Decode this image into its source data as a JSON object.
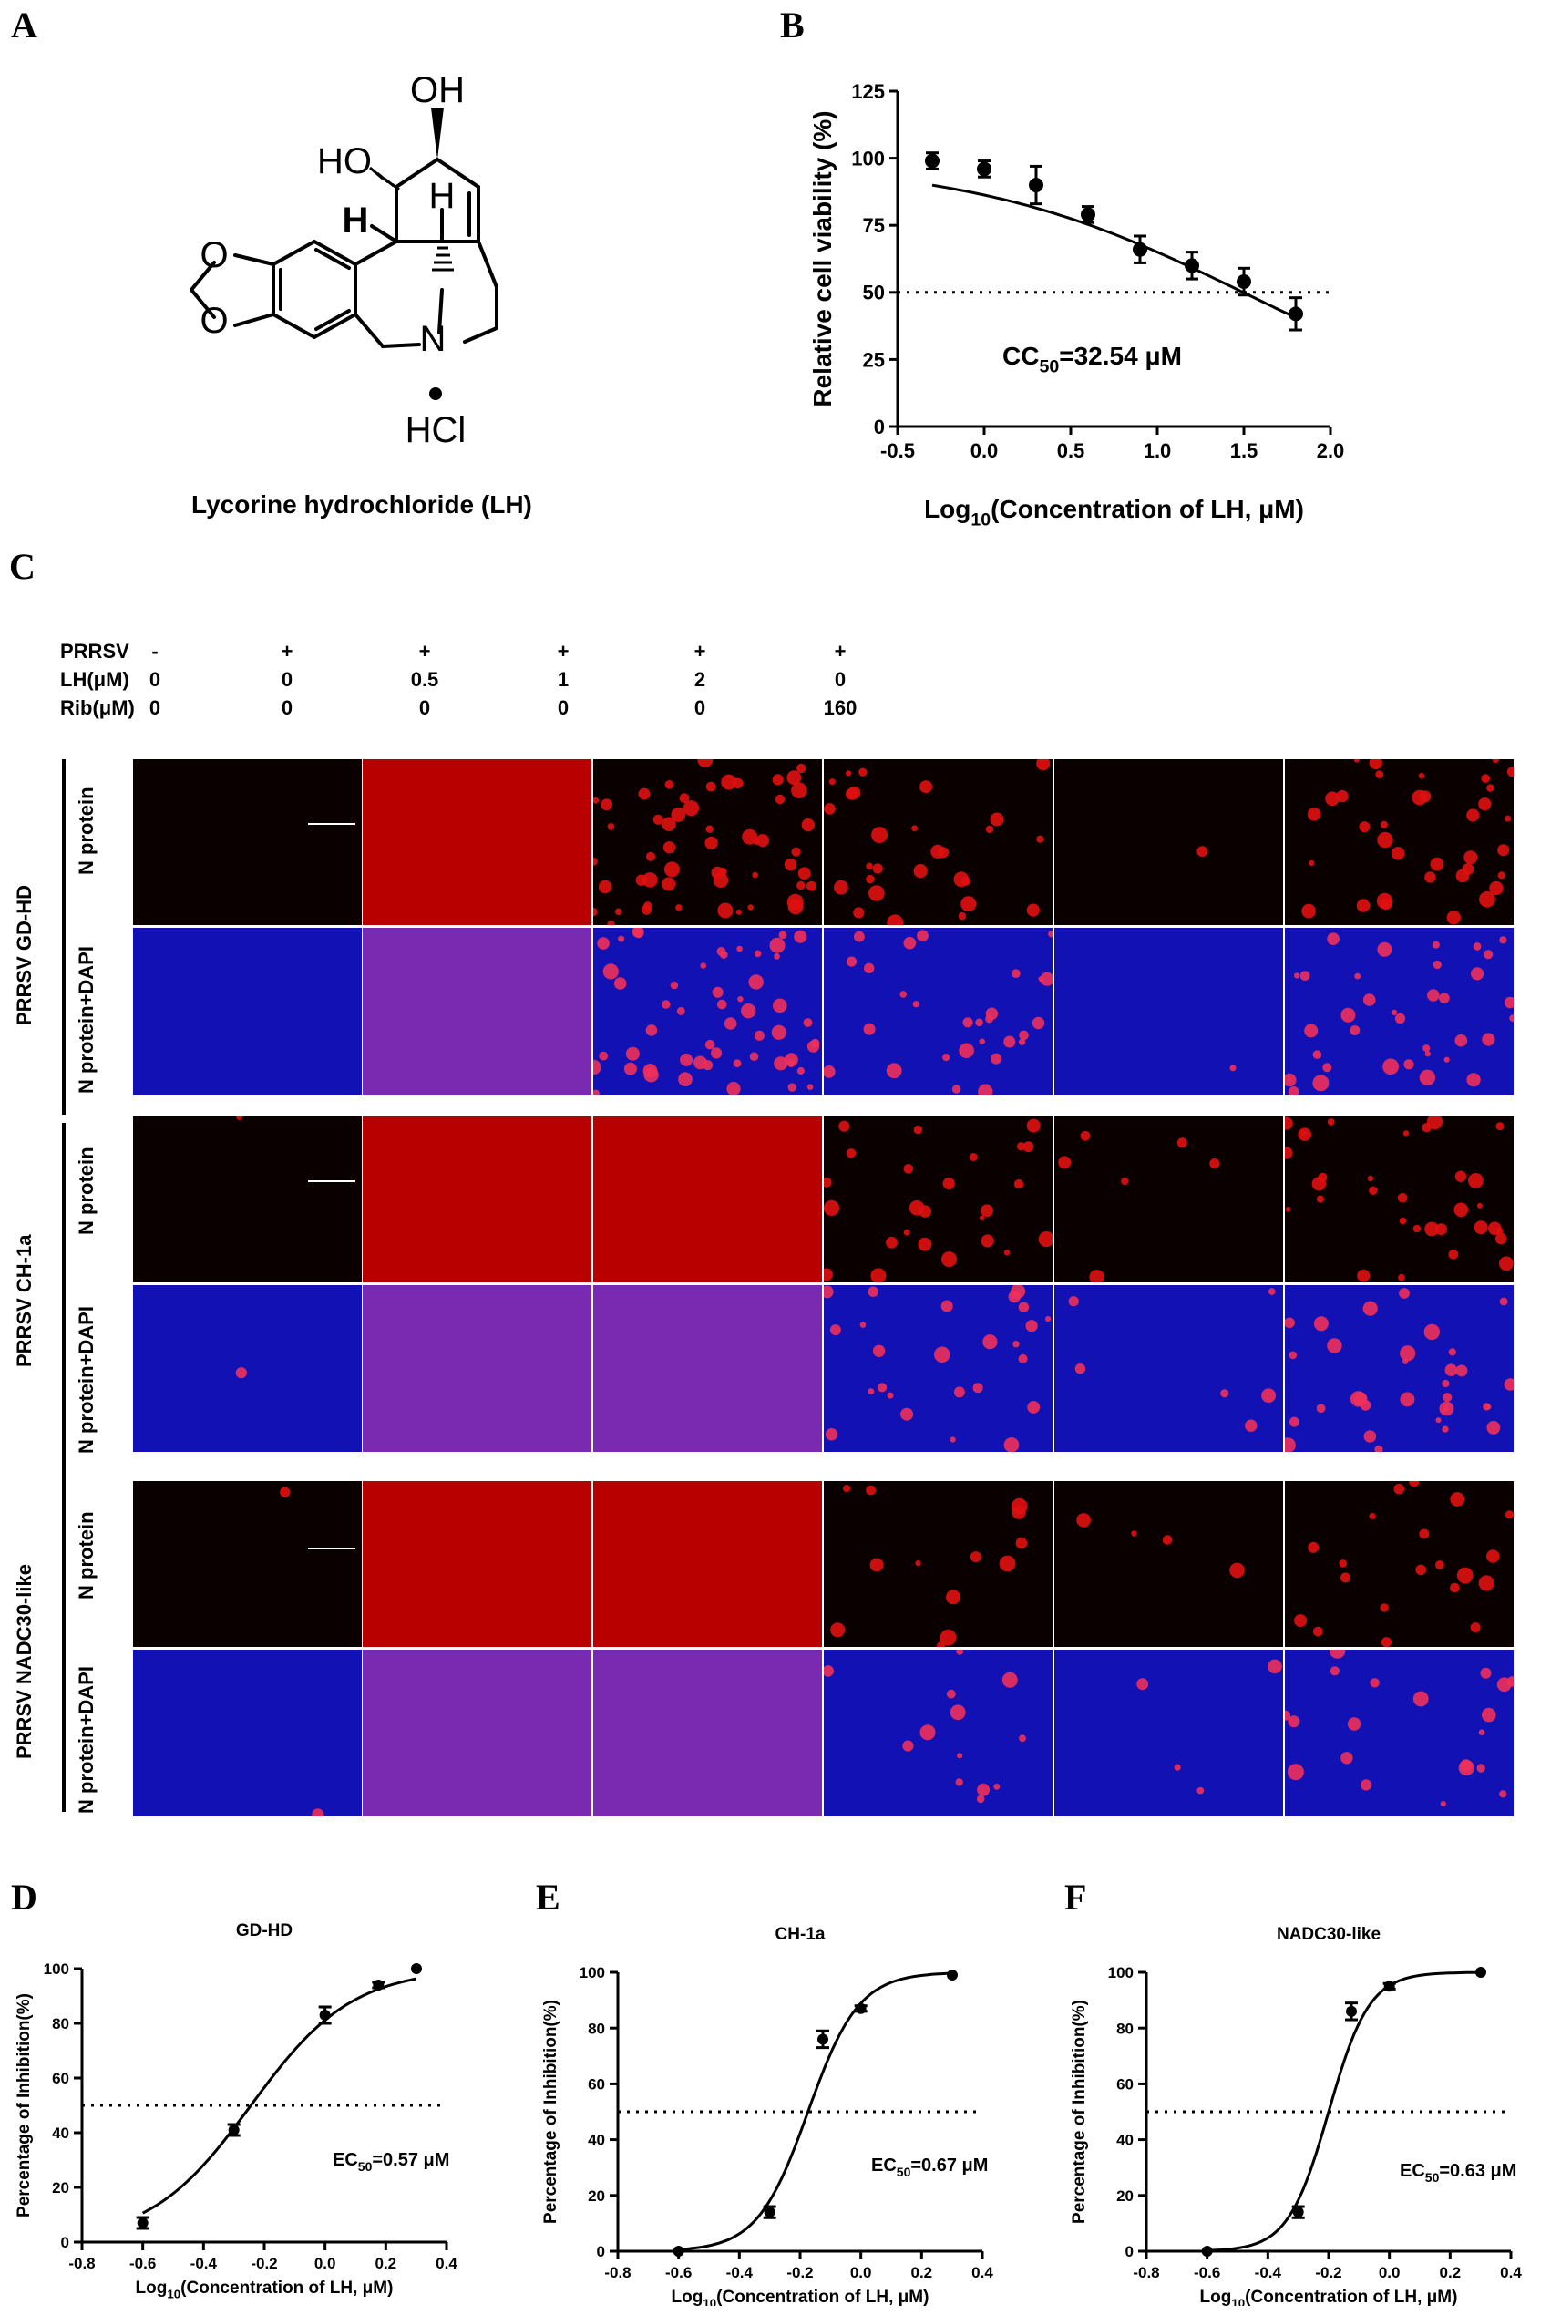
{
  "panels": {
    "A": "A",
    "B": "B",
    "C": "C",
    "D": "D",
    "E": "E",
    "F": "F"
  },
  "panel_a": {
    "caption": "Lycorine hydrochloride (LH)",
    "atoms": {
      "oh": "OH",
      "ho": "HO",
      "h1": "H",
      "h2": "H",
      "o1": "O",
      "o2": "O",
      "n": "N",
      "hcl": "HCl"
    }
  },
  "panel_c": {
    "conditions": [
      {
        "label": "PRRSV",
        "values": [
          "-",
          "+",
          "+",
          "+",
          "+",
          "+"
        ]
      },
      {
        "label": "LH(μM)",
        "values": [
          "0",
          "0",
          "0.5",
          "1",
          "2",
          "0"
        ]
      },
      {
        "label": "Rib(μM)",
        "values": [
          "0",
          "0",
          "0",
          "0",
          "0",
          "160"
        ]
      }
    ],
    "groups": [
      {
        "name": "PRRSV  GD-HD",
        "rows": [
          "N protein",
          "N protein+DAPI"
        ]
      },
      {
        "name": "PRRSV CH-1a",
        "rows": [
          "N protein",
          "N protein+DAPI"
        ]
      },
      {
        "name": "PRRSV NADC30-like",
        "rows": [
          "N protein",
          "N protein+DAPI"
        ]
      }
    ],
    "colors": {
      "red_channel": "#d00000",
      "blue_channel": "#1212b4",
      "merge": "#7a2ab0"
    },
    "signal_levels": {
      "GD-HD": [
        0,
        1.0,
        0.75,
        0.4,
        0.02,
        0.5
      ],
      "CH-1a": [
        0.02,
        0.8,
        0.85,
        0.35,
        0.08,
        0.45
      ],
      "NADC30-like": [
        0.02,
        0.9,
        0.9,
        0.18,
        0.05,
        0.28
      ]
    }
  },
  "chart_data": [
    {
      "panel": "B",
      "type": "scatter",
      "xlabel": "Log10(Concentration of LH, μM)",
      "xlabel_main": "Log",
      "xlabel_sub": "10",
      "xlabel_rest": "(Concentration of LH, μM)",
      "ylabel": "Relative cell viability (%)",
      "xlim": [
        -0.5,
        2.0
      ],
      "ylim": [
        0,
        125
      ],
      "xticks": [
        "-0.5",
        "0.0",
        "0.5",
        "1.0",
        "1.5",
        "2.0"
      ],
      "yticks": [
        "0",
        "25",
        "50",
        "75",
        "100",
        "125"
      ],
      "x": [
        -0.3,
        0.0,
        0.3,
        0.6,
        0.9,
        1.2,
        1.5,
        1.8
      ],
      "y": [
        99,
        96,
        90,
        79,
        66,
        60,
        54,
        42
      ],
      "err": [
        3,
        3,
        7,
        3,
        5,
        5,
        5,
        6
      ],
      "fit": {
        "x0": -0.3,
        "x1": 1.8,
        "top": 99,
        "logc50": 1.512,
        "hill": 0.55
      },
      "reference_y": 50,
      "annotation": {
        "main": "CC",
        "sub": "50",
        "rest": "=32.54 μM"
      }
    },
    {
      "panel": "D",
      "type": "scatter",
      "title": "GD-HD",
      "xlabel": "Log10(Concentration of LH, μM)",
      "xlabel_main": "Log",
      "xlabel_sub": "10",
      "xlabel_rest": "(Concentration of LH, μM)",
      "ylabel": "Percentage of Inhibition(%)",
      "xlim": [
        -0.8,
        0.4
      ],
      "ylim": [
        0,
        100
      ],
      "xticks": [
        "-0.8",
        "-0.6",
        "-0.4",
        "-0.2",
        "0.0",
        "0.2",
        "0.4"
      ],
      "yticks": [
        "0",
        "20",
        "40",
        "60",
        "80",
        "100"
      ],
      "x": [
        -0.6,
        -0.3,
        0.0,
        0.176,
        0.301
      ],
      "y": [
        7,
        41,
        83,
        94,
        100
      ],
      "err": [
        2,
        2,
        3,
        1,
        0
      ],
      "fit": {
        "x0": -0.6,
        "x1": 0.3,
        "logec50": -0.244,
        "hill": 2.6
      },
      "reference_y": 50,
      "annotation": {
        "main": "EC",
        "sub": "50",
        "rest": "=0.57 μM"
      }
    },
    {
      "panel": "E",
      "type": "scatter",
      "title": "CH-1a",
      "xlabel": "Log10(Concentration of LH, μM)",
      "xlabel_main": "Log",
      "xlabel_sub": "10",
      "xlabel_rest": "(Concentration of LH, μM)",
      "ylabel": "Percentage of Inhibition(%)",
      "xlim": [
        -0.8,
        0.4
      ],
      "ylim": [
        0,
        100
      ],
      "xticks": [
        "-0.8",
        "-0.6",
        "-0.4",
        "-0.2",
        "0.0",
        "0.2",
        "0.4"
      ],
      "yticks": [
        "0",
        "20",
        "40",
        "60",
        "80",
        "100"
      ],
      "x": [
        -0.6,
        -0.3,
        -0.125,
        0.0,
        0.301
      ],
      "y": [
        0,
        14,
        76,
        87,
        99
      ],
      "err": [
        0,
        2,
        3,
        1,
        0
      ],
      "fit": {
        "x0": -0.6,
        "x1": 0.3,
        "logec50": -0.174,
        "hill": 5.2
      },
      "reference_y": 50,
      "annotation": {
        "main": "EC",
        "sub": "50",
        "rest": "=0.67 μM"
      }
    },
    {
      "panel": "F",
      "type": "scatter",
      "title": "NADC30-like",
      "xlabel": "Log10(Concentration of LH, μM)",
      "xlabel_main": "Log",
      "xlabel_sub": "10",
      "xlabel_rest": "(Concentration of LH, μM)",
      "ylabel": "Percentage of Inhibition(%)",
      "xlim": [
        -0.8,
        0.4
      ],
      "ylim": [
        0,
        100
      ],
      "xticks": [
        "-0.8",
        "-0.6",
        "-0.4",
        "-0.2",
        "0.0",
        "0.2",
        "0.4"
      ],
      "yticks": [
        "0",
        "20",
        "40",
        "60",
        "80",
        "100"
      ],
      "x": [
        -0.6,
        -0.3,
        -0.125,
        0.0,
        0.301
      ],
      "y": [
        0,
        14,
        86,
        95,
        100
      ],
      "err": [
        0,
        2,
        3,
        1,
        0
      ],
      "fit": {
        "x0": -0.6,
        "x1": 0.3,
        "logec50": -0.2,
        "hill": 6.5
      },
      "reference_y": 50,
      "annotation": {
        "main": "EC",
        "sub": "50",
        "rest": "=0.63 μM"
      }
    }
  ]
}
